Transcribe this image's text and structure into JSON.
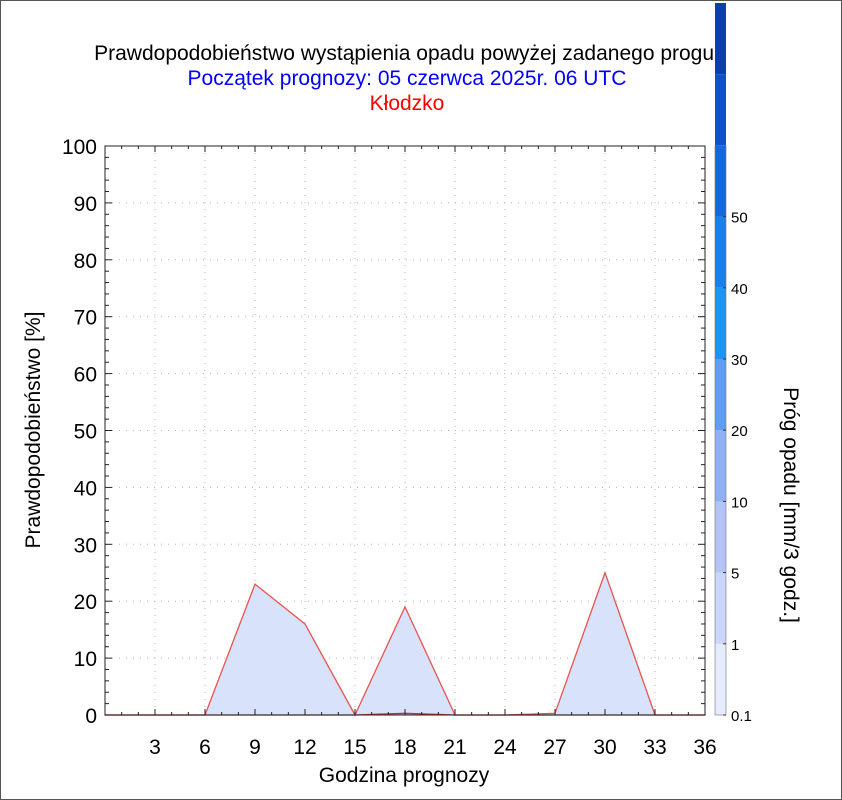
{
  "chart_data": {
    "type": "area",
    "title": "Prawdopodobieństwo wystąpienia opadu powyżej zadanego progu.",
    "subtitle": "Początek prognozy: 05 czerwca 2025r. 06 UTC",
    "location": "Kłodzko",
    "xlabel": "Godzina prognozy",
    "ylabel": "Prawdopodobieństwo [%]",
    "colorbar_label": "Próg opadu [mm/3 godz.]",
    "xlim": [
      0,
      36
    ],
    "ylim": [
      0,
      100
    ],
    "x_ticks": [
      3,
      6,
      9,
      12,
      15,
      18,
      21,
      24,
      27,
      30,
      33,
      36
    ],
    "y_ticks": [
      0,
      10,
      20,
      30,
      40,
      50,
      60,
      70,
      80,
      90,
      100
    ],
    "grid": true,
    "series": [
      {
        "threshold": "0.1",
        "x": [
          0,
          3,
          6,
          9,
          12,
          15,
          18,
          21,
          24,
          27,
          30,
          33,
          36
        ],
        "values": [
          0,
          0,
          0,
          23,
          16,
          0,
          19,
          0,
          0,
          0.3,
          25,
          0,
          0
        ],
        "color": "#e8534e",
        "fill": "#d9e2fb"
      },
      {
        "threshold": "1",
        "x": [
          0,
          3,
          6,
          9,
          12,
          15,
          18,
          21,
          24,
          27,
          30,
          33,
          36
        ],
        "values": [
          0,
          0,
          0,
          0,
          0,
          0,
          0.3,
          0,
          0,
          0,
          0,
          0,
          0
        ],
        "color": "#c03030",
        "fill": "#c3cff8"
      }
    ],
    "colorbar": {
      "labels": [
        "0.1",
        "1",
        "5",
        "10",
        "20",
        "30",
        "40",
        "50"
      ],
      "colors": [
        "#e6ebfd",
        "#c9d5fa",
        "#b5c4f7",
        "#8fb0f5",
        "#5f9ff0",
        "#1e93f0",
        "#1a7fe6",
        "#1567dc",
        "#0d52c6",
        "#0a3fae"
      ]
    }
  }
}
